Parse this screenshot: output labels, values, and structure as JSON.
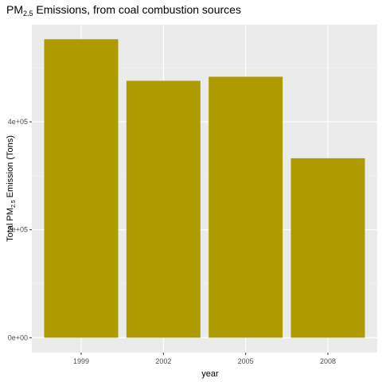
{
  "chart_data": {
    "type": "bar",
    "title": {
      "main": "PM",
      "sub": "2.5",
      "rest": " Emissions, from coal combustion sources"
    },
    "xlabel": "year",
    "ylabel": {
      "main": "Total PM",
      "sub": "2.5",
      "rest": " Emission (Tons)"
    },
    "categories": [
      "1999",
      "2002",
      "2005",
      "2008"
    ],
    "values": [
      553000,
      476000,
      483500,
      332500
    ],
    "ylim": [
      -27500,
      580000
    ],
    "yticks": [
      0,
      200000,
      400000
    ],
    "ytick_labels": [
      "0e+00",
      "2e+05",
      "4e+05"
    ],
    "grid": true,
    "legend": "none",
    "colors": {
      "bar": "#AD9B00",
      "panel": "#EBEBEB",
      "grid_major": "#FFFFFF",
      "grid_minor": "#F5F5F5",
      "tick": "#333333"
    }
  }
}
